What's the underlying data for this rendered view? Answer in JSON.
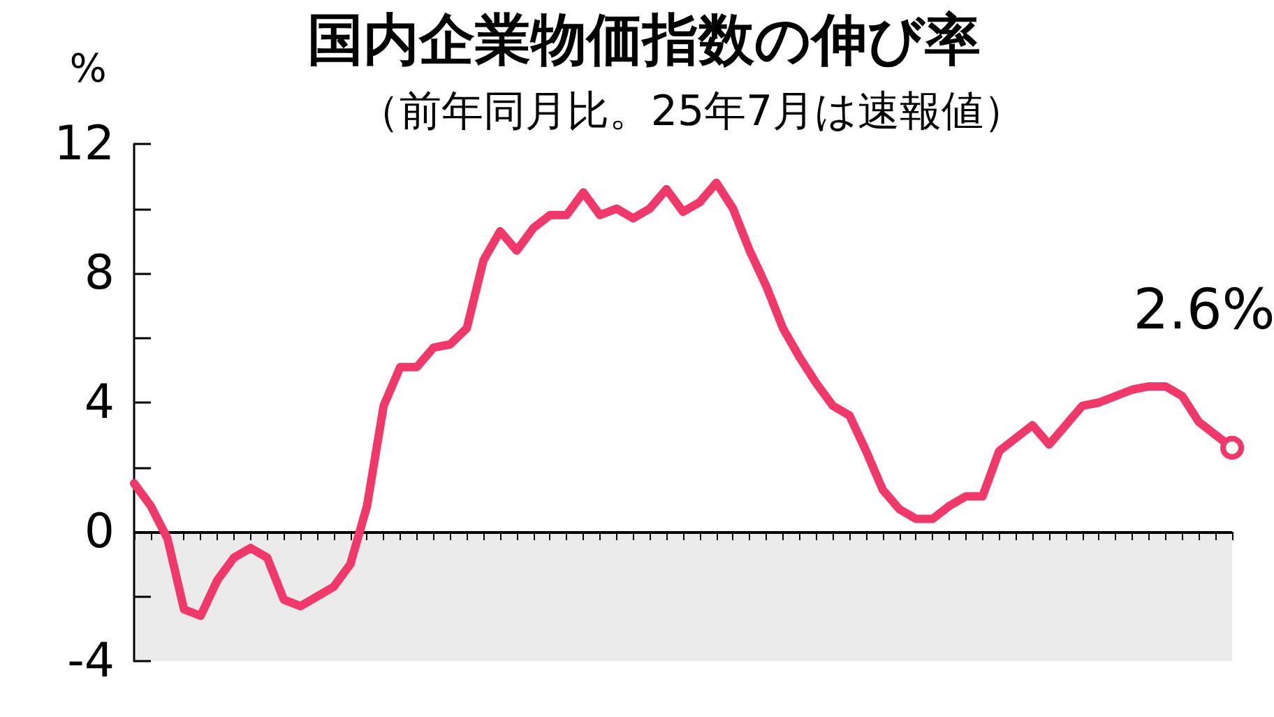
{
  "chart_data": {
    "type": "line",
    "title": "国内企業物価指数の伸び率",
    "subtitle": "（前年同月比。25年7月は速報値）",
    "ylabel": "%",
    "categories": [
      null,
      null,
      null,
      null,
      null,
      null,
      null,
      null,
      null,
      null,
      null,
      null,
      null,
      null,
      null,
      null,
      null,
      null,
      null,
      null,
      null,
      null,
      null,
      null,
      null,
      null,
      null,
      null,
      null,
      null,
      null,
      null,
      null,
      null,
      null,
      null,
      null,
      null,
      null,
      null,
      null,
      null,
      null,
      null,
      null,
      null,
      null,
      null,
      null,
      null,
      null,
      null,
      null,
      null,
      null,
      null,
      null,
      null,
      null,
      null,
      null,
      null,
      null,
      null,
      null,
      null,
      null
    ],
    "series": [
      {
        "color": "#f0386a",
        "values": [
          1.5,
          0.8,
          -0.2,
          -2.4,
          -2.6,
          -1.5,
          -0.8,
          -0.5,
          -0.8,
          -2.1,
          -2.3,
          -2.0,
          -1.7,
          -1.0,
          0.8,
          3.9,
          5.1,
          5.1,
          5.7,
          5.8,
          6.3,
          8.4,
          9.3,
          8.7,
          9.4,
          9.8,
          9.8,
          10.5,
          9.8,
          10.0,
          9.7,
          10.0,
          10.6,
          9.9,
          10.2,
          10.8,
          10.0,
          8.7,
          7.6,
          6.3,
          5.4,
          4.6,
          3.9,
          3.6,
          2.5,
          1.3,
          0.7,
          0.4,
          0.4,
          0.8,
          1.1,
          1.1,
          2.5,
          2.9,
          3.3,
          2.7,
          3.3,
          3.9,
          4.0,
          4.2,
          4.4,
          4.5,
          4.5,
          4.2,
          3.4,
          3.0,
          2.6
        ],
        "value_labels": [
          null,
          null,
          null,
          null,
          null,
          null,
          null,
          null,
          null,
          null,
          null,
          null,
          null,
          null,
          null,
          null,
          null,
          null,
          null,
          null,
          null,
          null,
          null,
          null,
          null,
          null,
          null,
          null,
          null,
          null,
          null,
          null,
          null,
          null,
          null,
          null,
          null,
          null,
          null,
          null,
          null,
          null,
          null,
          null,
          null,
          null,
          null,
          null,
          null,
          null,
          null,
          null,
          null,
          null,
          null,
          null,
          null,
          null,
          null,
          null,
          null,
          null,
          null,
          null,
          null,
          null,
          "2.6%"
        ]
      }
    ],
    "ylim": [
      -4,
      12
    ],
    "yticks": [
      -4,
      {
        "value": -2,
        "label": null
      },
      0,
      {
        "value": 2,
        "label": null
      },
      4,
      {
        "value": 6,
        "label": null
      },
      8,
      {
        "value": 10,
        "label": null
      },
      12
    ],
    "tick_labels": "y",
    "grid": false,
    "marker": "none",
    "line_style": "solid",
    "bands": [
      {
        "axis": "y",
        "from": -4,
        "to": 0,
        "color": "#ebebeb"
      }
    ],
    "ref_lines": [
      {
        "axis": "y",
        "value": 0,
        "color": "#000000"
      }
    ]
  }
}
